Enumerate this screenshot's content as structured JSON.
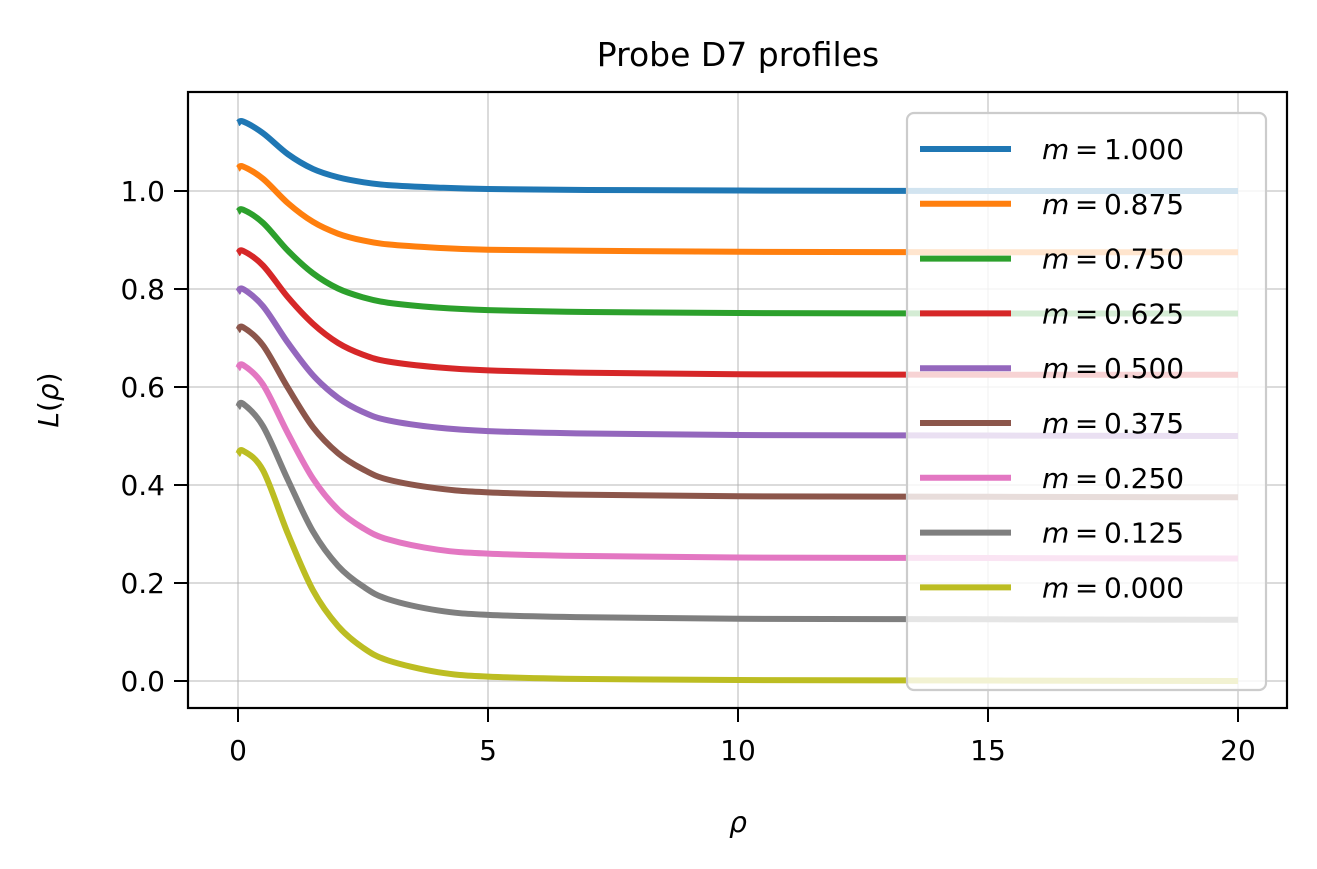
{
  "chart_data": {
    "type": "line",
    "title": "Probe D7 profiles",
    "xlabel": "ρ",
    "ylabel": "L(ρ)",
    "xlim": [
      -1,
      21
    ],
    "ylim": [
      -0.055,
      1.2
    ],
    "xticks": [
      0,
      5,
      10,
      15,
      20
    ],
    "xtick_labels": [
      "0",
      "5",
      "10",
      "15",
      "20"
    ],
    "yticks": [
      0.0,
      0.2,
      0.4,
      0.6,
      0.8,
      1.0
    ],
    "ytick_labels": [
      "0.0",
      "0.2",
      "0.4",
      "0.6",
      "0.8",
      "1.0"
    ],
    "grid": true,
    "legend_position": "upper right",
    "x": [
      0,
      0.1,
      0.5,
      1,
      1.5,
      2,
      2.5,
      3,
      4,
      5,
      7,
      10,
      15,
      20
    ],
    "series": [
      {
        "name": "m = 1.000",
        "m": "1.000",
        "color": "#1f77b4",
        "values": [
          1.138,
          1.142,
          1.118,
          1.075,
          1.045,
          1.028,
          1.018,
          1.012,
          1.007,
          1.004,
          1.002,
          1.001,
          1.0,
          1.0
        ]
      },
      {
        "name": "m = 0.875",
        "m": "0.875",
        "color": "#ff7f0e",
        "values": [
          1.045,
          1.05,
          1.025,
          0.975,
          0.937,
          0.913,
          0.899,
          0.891,
          0.884,
          0.88,
          0.878,
          0.876,
          0.875,
          0.875
        ]
      },
      {
        "name": "m = 0.750",
        "m": "0.750",
        "color": "#2ca02c",
        "values": [
          0.957,
          0.962,
          0.935,
          0.878,
          0.832,
          0.801,
          0.783,
          0.772,
          0.762,
          0.757,
          0.753,
          0.751,
          0.75,
          0.75
        ]
      },
      {
        "name": "m = 0.625",
        "m": "0.625",
        "color": "#d62728",
        "values": [
          0.872,
          0.878,
          0.848,
          0.783,
          0.729,
          0.69,
          0.666,
          0.652,
          0.64,
          0.634,
          0.629,
          0.626,
          0.625,
          0.625
        ]
      },
      {
        "name": "m = 0.500",
        "m": "0.500",
        "color": "#9467bd",
        "values": [
          0.793,
          0.8,
          0.765,
          0.69,
          0.624,
          0.578,
          0.549,
          0.532,
          0.517,
          0.51,
          0.505,
          0.502,
          0.501,
          0.5
        ]
      },
      {
        "name": "m = 0.375",
        "m": "0.375",
        "color": "#8c564b",
        "values": [
          0.715,
          0.722,
          0.685,
          0.598,
          0.518,
          0.465,
          0.432,
          0.411,
          0.393,
          0.385,
          0.38,
          0.377,
          0.376,
          0.375
        ]
      },
      {
        "name": "m = 0.250",
        "m": "0.250",
        "color": "#e377c2",
        "values": [
          0.637,
          0.645,
          0.605,
          0.505,
          0.413,
          0.35,
          0.312,
          0.289,
          0.268,
          0.26,
          0.255,
          0.252,
          0.251,
          0.25
        ]
      },
      {
        "name": "m = 0.125",
        "m": "0.125",
        "color": "#7f7f7f",
        "values": [
          0.558,
          0.566,
          0.52,
          0.41,
          0.305,
          0.235,
          0.193,
          0.167,
          0.144,
          0.135,
          0.13,
          0.127,
          0.126,
          0.125
        ]
      },
      {
        "name": "m = 0.000",
        "m": "0.000",
        "color": "#bcbd22",
        "values": [
          0.462,
          0.47,
          0.43,
          0.3,
          0.185,
          0.112,
          0.068,
          0.042,
          0.018,
          0.009,
          0.004,
          0.002,
          0.001,
          0.0
        ]
      }
    ]
  },
  "legend": {
    "items": [
      {
        "var": "m",
        "eq": " = ",
        "value": "1.000"
      },
      {
        "var": "m",
        "eq": " = ",
        "value": "0.875"
      },
      {
        "var": "m",
        "eq": " = ",
        "value": "0.750"
      },
      {
        "var": "m",
        "eq": " = ",
        "value": "0.625"
      },
      {
        "var": "m",
        "eq": " = ",
        "value": "0.500"
      },
      {
        "var": "m",
        "eq": " = ",
        "value": "0.375"
      },
      {
        "var": "m",
        "eq": " = ",
        "value": "0.250"
      },
      {
        "var": "m",
        "eq": " = ",
        "value": "0.125"
      },
      {
        "var": "m",
        "eq": " = ",
        "value": "0.000"
      }
    ]
  },
  "labels": {
    "ylabel_L": "L",
    "ylabel_open": "(",
    "ylabel_rho": "ρ",
    "ylabel_close": ")"
  }
}
